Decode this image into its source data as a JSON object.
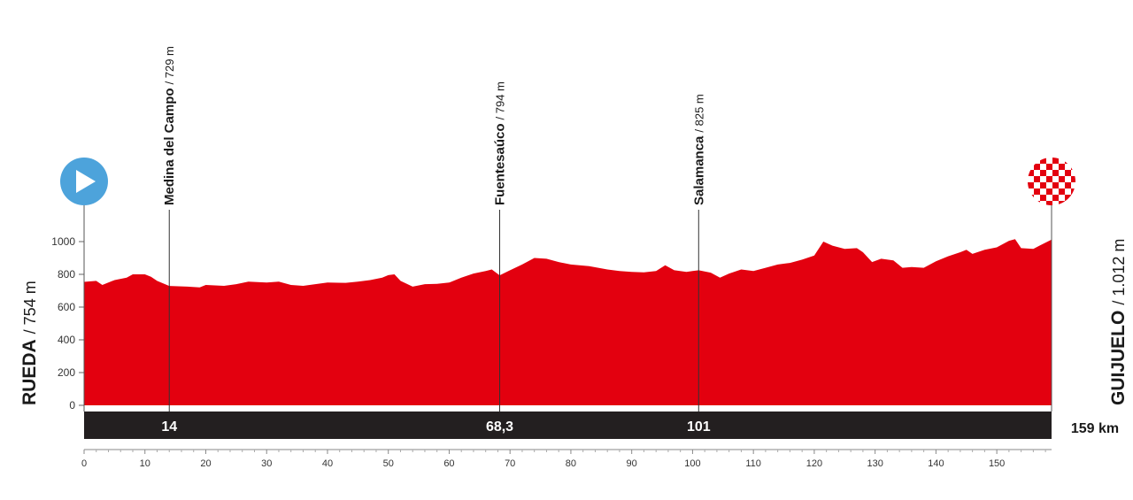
{
  "chart_data": {
    "type": "area",
    "title": "",
    "xlabel": "",
    "ylabel": "",
    "xlim": [
      0,
      159
    ],
    "ylim": [
      0,
      1000
    ],
    "yticks": [
      "0",
      "200",
      "400",
      "600",
      "800",
      "1000"
    ],
    "xticks": [
      "0",
      "10",
      "20",
      "30",
      "40",
      "50",
      "60",
      "70",
      "80",
      "90",
      "100",
      "110",
      "120",
      "130",
      "140",
      "150"
    ],
    "grid": false,
    "fill_color": "#e3000f",
    "bar_color": "#231f20",
    "start": {
      "name": "RUEDA",
      "altitude": "/ 754 m",
      "icon": "start-play-icon",
      "color": "#4da3db"
    },
    "finish": {
      "name": "GUIJUELO",
      "altitude": "/ 1.012 m",
      "icon": "finish-checkered-flag-icon",
      "distance": "159 km"
    },
    "waypoints": [
      {
        "km": 14,
        "km_label": "14",
        "name": "Medina del Campo",
        "altitude": "/ 729 m"
      },
      {
        "km": 68.3,
        "km_label": "68,3",
        "name": "Fuentesaúco",
        "altitude": "/ 794 m"
      },
      {
        "km": 101,
        "km_label": "101",
        "name": "Salamanca",
        "altitude": "/ 825 m"
      }
    ],
    "profile": [
      [
        0,
        754
      ],
      [
        2,
        760
      ],
      [
        3,
        735
      ],
      [
        5,
        765
      ],
      [
        7,
        780
      ],
      [
        8,
        800
      ],
      [
        10,
        800
      ],
      [
        11,
        785
      ],
      [
        12,
        760
      ],
      [
        14,
        729
      ],
      [
        17,
        725
      ],
      [
        19,
        720
      ],
      [
        20,
        735
      ],
      [
        23,
        730
      ],
      [
        25,
        740
      ],
      [
        27,
        755
      ],
      [
        30,
        750
      ],
      [
        32,
        755
      ],
      [
        34,
        735
      ],
      [
        36,
        730
      ],
      [
        38,
        740
      ],
      [
        40,
        750
      ],
      [
        43,
        748
      ],
      [
        45,
        755
      ],
      [
        47,
        765
      ],
      [
        49,
        780
      ],
      [
        50,
        795
      ],
      [
        51,
        800
      ],
      [
        52,
        760
      ],
      [
        54,
        725
      ],
      [
        56,
        740
      ],
      [
        58,
        742
      ],
      [
        60,
        750
      ],
      [
        62,
        780
      ],
      [
        64,
        805
      ],
      [
        66,
        820
      ],
      [
        67,
        830
      ],
      [
        68.3,
        794
      ],
      [
        70,
        825
      ],
      [
        72,
        860
      ],
      [
        74,
        900
      ],
      [
        76,
        895
      ],
      [
        78,
        875
      ],
      [
        80,
        860
      ],
      [
        83,
        850
      ],
      [
        86,
        830
      ],
      [
        88,
        820
      ],
      [
        90,
        815
      ],
      [
        92,
        812
      ],
      [
        94,
        820
      ],
      [
        95.5,
        855
      ],
      [
        97,
        825
      ],
      [
        99,
        815
      ],
      [
        100,
        820
      ],
      [
        101,
        825
      ],
      [
        103,
        810
      ],
      [
        104.5,
        780
      ],
      [
        106,
        805
      ],
      [
        108,
        830
      ],
      [
        110,
        820
      ],
      [
        112,
        840
      ],
      [
        114,
        860
      ],
      [
        116,
        870
      ],
      [
        118,
        890
      ],
      [
        120,
        915
      ],
      [
        121.5,
        1000
      ],
      [
        123,
        975
      ],
      [
        125,
        955
      ],
      [
        127,
        960
      ],
      [
        128,
        935
      ],
      [
        129.5,
        875
      ],
      [
        131,
        895
      ],
      [
        133,
        885
      ],
      [
        134.5,
        840
      ],
      [
        136,
        845
      ],
      [
        138,
        840
      ],
      [
        140,
        880
      ],
      [
        142,
        910
      ],
      [
        144,
        935
      ],
      [
        145,
        950
      ],
      [
        146,
        925
      ],
      [
        148,
        950
      ],
      [
        150,
        965
      ],
      [
        152,
        1005
      ],
      [
        153,
        1015
      ],
      [
        154,
        960
      ],
      [
        156,
        955
      ],
      [
        157,
        975
      ],
      [
        159,
        1012
      ]
    ]
  }
}
